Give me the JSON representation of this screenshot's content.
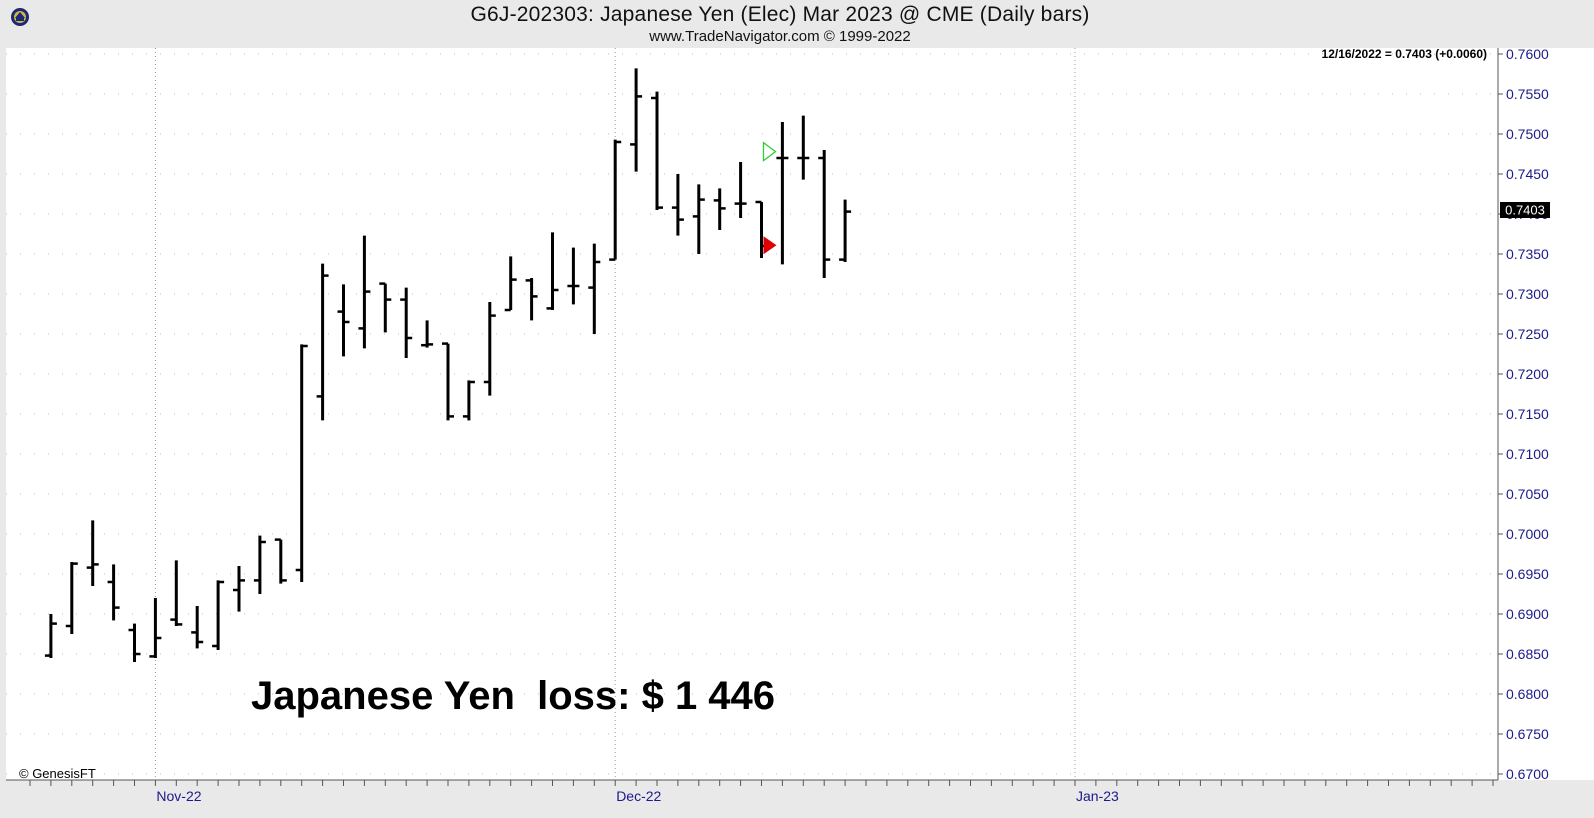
{
  "header": {
    "title": "G6J-202303:  Japanese Yen (Elec) Mar 2023 @ CME  (Daily bars)",
    "subtitle": "www.TradeNavigator.com © 1999-2022"
  },
  "readout": "12/16/2022 = 0.7403 (+0.0060)",
  "last_price_label": "0.7403",
  "annotation": "Japanese Yen  loss: $ 1 446",
  "credit": "© GenesisFT",
  "colors": {
    "bars": "#000000",
    "axis_text": "#1a1a8c",
    "entry_marker": "#33cc33",
    "exit_marker": "#e00000",
    "frame": "#e9e9e9"
  },
  "chart_data": {
    "type": "ohlc",
    "ylim": [
      0.67,
      0.76
    ],
    "yticks": [
      "0.7600",
      "0.7550",
      "0.7500",
      "0.7450",
      "0.7400",
      "0.7350",
      "0.7300",
      "0.7250",
      "0.7200",
      "0.7150",
      "0.7100",
      "0.7050",
      "0.7000",
      "0.6950",
      "0.6900",
      "0.6850",
      "0.6800",
      "0.6750",
      "0.6700"
    ],
    "xlabels": [
      {
        "label": "Nov-22",
        "date": "2022-11-01"
      },
      {
        "label": "Dec-22",
        "date": "2022-12-01"
      },
      {
        "label": "Jan-23",
        "date": "2023-01-02"
      }
    ],
    "grid": true,
    "bars": [
      {
        "date": "2022-10-25",
        "o": 0.6848,
        "h": 0.69,
        "l": 0.6845,
        "c": 0.6888
      },
      {
        "date": "2022-10-26",
        "o": 0.6885,
        "h": 0.6965,
        "l": 0.6875,
        "c": 0.6963
      },
      {
        "date": "2022-10-27",
        "o": 0.6958,
        "h": 0.7017,
        "l": 0.6935,
        "c": 0.6962
      },
      {
        "date": "2022-10-28",
        "o": 0.694,
        "h": 0.6962,
        "l": 0.6892,
        "c": 0.6908
      },
      {
        "date": "2022-10-31",
        "o": 0.688,
        "h": 0.6888,
        "l": 0.684,
        "c": 0.685
      },
      {
        "date": "2022-11-01",
        "o": 0.6847,
        "h": 0.692,
        "l": 0.6845,
        "c": 0.687
      },
      {
        "date": "2022-11-02",
        "o": 0.6893,
        "h": 0.6967,
        "l": 0.6885,
        "c": 0.6887
      },
      {
        "date": "2022-11-03",
        "o": 0.6877,
        "h": 0.691,
        "l": 0.6857,
        "c": 0.6865
      },
      {
        "date": "2022-11-04",
        "o": 0.686,
        "h": 0.6942,
        "l": 0.6855,
        "c": 0.694
      },
      {
        "date": "2022-11-07",
        "o": 0.693,
        "h": 0.696,
        "l": 0.6903,
        "c": 0.6942
      },
      {
        "date": "2022-11-08",
        "o": 0.6942,
        "h": 0.6998,
        "l": 0.6925,
        "c": 0.699
      },
      {
        "date": "2022-11-09",
        "o": 0.6993,
        "h": 0.6993,
        "l": 0.6938,
        "c": 0.6942
      },
      {
        "date": "2022-11-10",
        "o": 0.6955,
        "h": 0.7237,
        "l": 0.694,
        "c": 0.7235
      },
      {
        "date": "2022-11-11",
        "o": 0.7172,
        "h": 0.7338,
        "l": 0.7142,
        "c": 0.7323
      },
      {
        "date": "2022-11-14",
        "o": 0.7278,
        "h": 0.7312,
        "l": 0.7222,
        "c": 0.7265
      },
      {
        "date": "2022-11-15",
        "o": 0.7257,
        "h": 0.7373,
        "l": 0.7232,
        "c": 0.7303
      },
      {
        "date": "2022-11-16",
        "o": 0.7313,
        "h": 0.7313,
        "l": 0.7252,
        "c": 0.7293
      },
      {
        "date": "2022-11-17",
        "o": 0.7293,
        "h": 0.7308,
        "l": 0.722,
        "c": 0.7245
      },
      {
        "date": "2022-11-18",
        "o": 0.7236,
        "h": 0.7267,
        "l": 0.7233,
        "c": 0.7237
      },
      {
        "date": "2022-11-21",
        "o": 0.7238,
        "h": 0.7238,
        "l": 0.7142,
        "c": 0.7147
      },
      {
        "date": "2022-11-22",
        "o": 0.7147,
        "h": 0.7192,
        "l": 0.7142,
        "c": 0.719
      },
      {
        "date": "2022-11-23",
        "o": 0.719,
        "h": 0.729,
        "l": 0.7173,
        "c": 0.7273
      },
      {
        "date": "2022-11-24",
        "o": 0.728,
        "h": 0.7347,
        "l": 0.728,
        "c": 0.7318
      },
      {
        "date": "2022-11-25",
        "o": 0.7317,
        "h": 0.732,
        "l": 0.7267,
        "c": 0.7297
      },
      {
        "date": "2022-11-28",
        "o": 0.7282,
        "h": 0.7377,
        "l": 0.728,
        "c": 0.7305
      },
      {
        "date": "2022-11-29",
        "o": 0.731,
        "h": 0.7358,
        "l": 0.7287,
        "c": 0.731
      },
      {
        "date": "2022-11-30",
        "o": 0.7308,
        "h": 0.7363,
        "l": 0.725,
        "c": 0.734
      },
      {
        "date": "2022-12-01",
        "o": 0.7343,
        "h": 0.7493,
        "l": 0.7343,
        "c": 0.749
      },
      {
        "date": "2022-12-02",
        "o": 0.7487,
        "h": 0.7582,
        "l": 0.7453,
        "c": 0.7547
      },
      {
        "date": "2022-12-05",
        "o": 0.7545,
        "h": 0.7553,
        "l": 0.7405,
        "c": 0.7408
      },
      {
        "date": "2022-12-06",
        "o": 0.7408,
        "h": 0.745,
        "l": 0.7373,
        "c": 0.7393
      },
      {
        "date": "2022-12-07",
        "o": 0.7397,
        "h": 0.7437,
        "l": 0.735,
        "c": 0.7418
      },
      {
        "date": "2022-12-08",
        "o": 0.7417,
        "h": 0.7432,
        "l": 0.738,
        "c": 0.7407
      },
      {
        "date": "2022-12-09",
        "o": 0.7413,
        "h": 0.7465,
        "l": 0.7395,
        "c": 0.7413
      },
      {
        "date": "2022-12-12",
        "o": 0.7415,
        "h": 0.7415,
        "l": 0.7345,
        "c": 0.736
      },
      {
        "date": "2022-12-13",
        "o": 0.747,
        "h": 0.7515,
        "l": 0.7337,
        "c": 0.747
      },
      {
        "date": "2022-12-14",
        "o": 0.747,
        "h": 0.7523,
        "l": 0.7443,
        "c": 0.747
      },
      {
        "date": "2022-12-15",
        "o": 0.747,
        "h": 0.748,
        "l": 0.732,
        "c": 0.7343
      },
      {
        "date": "2022-12-16",
        "o": 0.7343,
        "h": 0.7418,
        "l": 0.734,
        "c": 0.7403
      }
    ],
    "markers": [
      {
        "type": "entry",
        "direction": "up",
        "date": "2022-12-12",
        "price": 0.7478
      },
      {
        "type": "exit",
        "direction": "right",
        "date": "2022-12-12",
        "price": 0.7361
      }
    ]
  }
}
